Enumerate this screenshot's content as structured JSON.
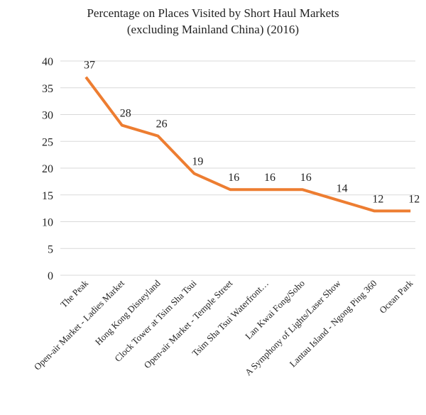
{
  "chart_data": {
    "type": "line",
    "title": [
      "Percentage on Places Visited by Short Haul Markets",
      "(excluding Mainland China) (2016)"
    ],
    "categories": [
      "The Peak",
      "Open-air Market - Ladies Market",
      "Hong Kong Disneyland",
      "Clock Tower at Tsim Sha Tsui",
      "Open-air Market - Temple Street",
      "Tsim Sha Tsui Waterfront…",
      "Lan Kwai Fong/Soho",
      "A Symphony of Lights/Laser Show",
      "Lantau Island - Ngong Ping 360",
      "Ocean Park"
    ],
    "values": [
      37,
      28,
      26,
      19,
      16,
      16,
      16,
      14,
      12,
      12
    ],
    "color": "#ed7d31",
    "ylim": [
      0,
      40
    ],
    "yticks": [
      0,
      5,
      10,
      15,
      20,
      25,
      30,
      35,
      40
    ],
    "grid": true
  }
}
